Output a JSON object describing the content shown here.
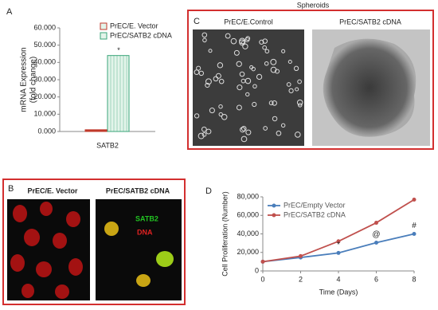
{
  "panels": {
    "a": "A",
    "b": "B",
    "c": "C",
    "d": "D"
  },
  "spheroids": {
    "title": "Spheroids",
    "left_label": "PrEC/E.Control",
    "right_label": "PrEC/SATB2  cDNA"
  },
  "staining": {
    "left_label": "PrEC/E. Vector",
    "right_label": "PrEC/SATB2 cDNA",
    "legend_satb2": "SATB2",
    "legend_dna": "DNA"
  },
  "chart_data": [
    {
      "type": "bar",
      "ylabel": [
        "mRNA Expression",
        "(fold change)"
      ],
      "categories": [
        "SATB2"
      ],
      "series": [
        {
          "name": "PrEC/E. Vector",
          "color": "#c0392b",
          "values": [
            1
          ]
        },
        {
          "name": "PrEC/SATB2 cDNA",
          "color": "#3aa57a",
          "values": [
            44
          ]
        }
      ],
      "ylim": [
        0,
        60
      ],
      "yticks": [
        {
          "value": 0,
          "label": "0.000"
        },
        {
          "value": 10,
          "label": "10.000"
        },
        {
          "value": 20,
          "label": "20.000"
        },
        {
          "value": 30,
          "label": "30.000"
        },
        {
          "value": 40,
          "label": "40.000"
        },
        {
          "value": 50,
          "label": "50.000"
        },
        {
          "value": 60,
          "label": "60.000"
        }
      ],
      "annotations": [
        {
          "text": "*",
          "series": 1
        }
      ]
    },
    {
      "type": "line",
      "xlabel": "Time (Days)",
      "ylabel": "Cell Proliferation (Number)",
      "x": [
        0,
        2,
        4,
        6,
        8
      ],
      "series": [
        {
          "name": "PrEC/Empty Vector",
          "color": "#4a7ebb",
          "values": [
            10000,
            14500,
            19500,
            30500,
            40000
          ]
        },
        {
          "name": "PrEC/SATB2 cDNA",
          "color": "#c0504d",
          "values": [
            10000,
            16000,
            32000,
            52000,
            77000
          ]
        }
      ],
      "xlim": [
        0,
        8
      ],
      "xticks": [
        0,
        2,
        4,
        6,
        8
      ],
      "ylim": [
        0,
        80000
      ],
      "yticks": [
        0,
        {
          "value": 20000,
          "label": "20,000"
        },
        {
          "value": 40000,
          "label": "40,000"
        },
        {
          "value": 60000,
          "label": "60,000"
        },
        {
          "value": 80000,
          "label": "80,000"
        }
      ],
      "annotations": [
        {
          "text": "*",
          "x": 4
        },
        {
          "text": "@",
          "x": 6
        },
        {
          "text": "#",
          "x": 8
        }
      ]
    }
  ]
}
